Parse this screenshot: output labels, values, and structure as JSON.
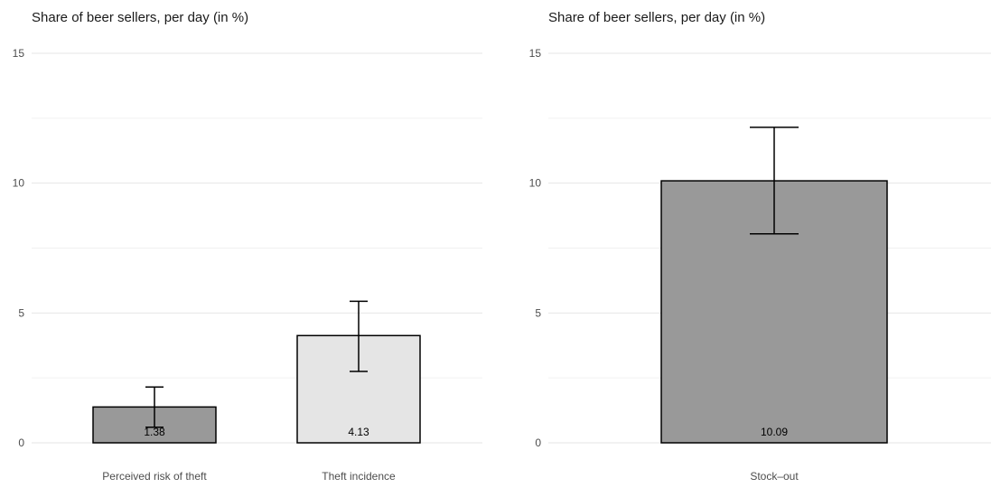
{
  "chart_data": [
    {
      "type": "bar",
      "title": "Share of beer sellers, per day (in %)",
      "xlabel": "",
      "ylabel": "",
      "ylim": [
        0,
        15
      ],
      "yticks": [
        0,
        5,
        10,
        15
      ],
      "grid": true,
      "categories": [
        "Perceived risk of theft",
        "Theft incidence"
      ],
      "values": [
        1.38,
        4.13
      ],
      "value_labels": [
        "1.38",
        "4.13"
      ],
      "error_low": [
        0.6,
        2.75
      ],
      "error_high": [
        2.15,
        5.45
      ],
      "bar_colors": [
        "#999999",
        "#e5e5e5"
      ]
    },
    {
      "type": "bar",
      "title": "Share of beer sellers, per day (in %)",
      "xlabel": "",
      "ylabel": "",
      "ylim": [
        0,
        15
      ],
      "yticks": [
        0,
        5,
        10,
        15
      ],
      "grid": true,
      "categories": [
        "Stock–out"
      ],
      "values": [
        10.09
      ],
      "value_labels": [
        "10.09"
      ],
      "error_low": [
        8.05
      ],
      "error_high": [
        12.15
      ],
      "bar_colors": [
        "#999999"
      ]
    }
  ]
}
